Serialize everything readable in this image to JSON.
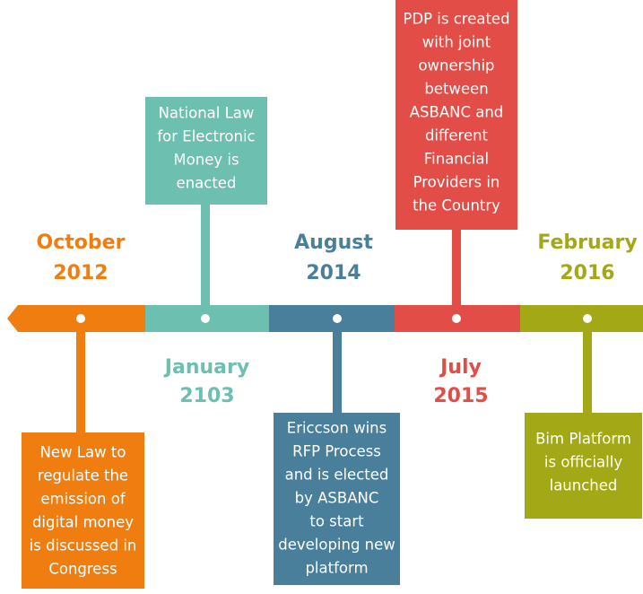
{
  "events": [
    {
      "date": [
        "October",
        "2012"
      ],
      "color": "#f07d0f",
      "description": [
        "New Law to",
        "regulate the",
        "emission of",
        "digital money",
        "is discussed in",
        "Congress"
      ]
    },
    {
      "date": [
        "January",
        "2103"
      ],
      "color": "#6dbfb0",
      "description": [
        "National Law",
        "for Electronic",
        "Money is",
        "enacted"
      ]
    },
    {
      "date": [
        "August",
        "2014"
      ],
      "color": "#4a7f9c",
      "description": [
        "Ericcson wins",
        "RFP Process",
        "and is elected",
        "by ASBANC",
        "to start",
        "developing new",
        "platform"
      ]
    },
    {
      "date": [
        "July",
        "2015"
      ],
      "color": "#e24d47",
      "description": [
        "PDP is created",
        "with joint",
        "ownership",
        "between",
        "ASBANC and",
        "different",
        "Financial",
        "Providers in",
        "the Country"
      ]
    },
    {
      "date": [
        "February",
        "2016"
      ],
      "color": "#a3a816",
      "description": [
        "Bim Platform",
        "is officially",
        "launched"
      ]
    }
  ]
}
